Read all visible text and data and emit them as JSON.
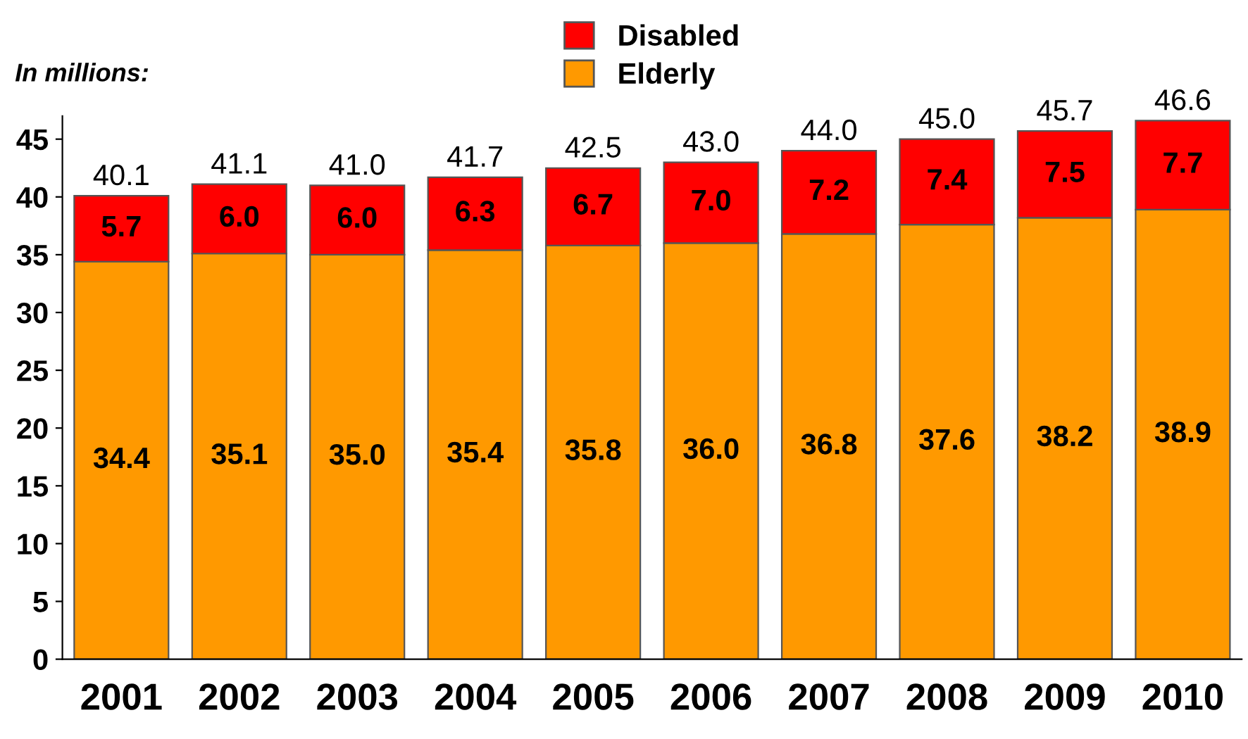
{
  "chart_data": {
    "type": "bar",
    "stacked": true,
    "categories": [
      "2001",
      "2002",
      "2003",
      "2004",
      "2005",
      "2006",
      "2007",
      "2008",
      "2009",
      "2010"
    ],
    "series": [
      {
        "name": "Elderly",
        "color": "#ff9900",
        "values": [
          34.4,
          35.1,
          35.0,
          35.4,
          35.8,
          36.0,
          36.8,
          37.6,
          38.2,
          38.9
        ],
        "value_labels": [
          "34.4",
          "35.1",
          "35.0",
          "35.4",
          "35.8",
          "36.0",
          "36.8",
          "37.6",
          "38.2",
          "38.9"
        ]
      },
      {
        "name": "Disabled",
        "color": "#ff0000",
        "values": [
          5.7,
          6.0,
          6.0,
          6.3,
          6.7,
          7.0,
          7.2,
          7.4,
          7.5,
          7.7
        ],
        "value_labels": [
          "5.7",
          "6.0",
          "6.0",
          "6.3",
          "6.7",
          "7.0",
          "7.2",
          "7.4",
          "7.5",
          "7.7"
        ]
      }
    ],
    "totals": [
      "40.1",
      "41.1",
      "41.0",
      "41.7",
      "42.5",
      "43.0",
      "44.0",
      "45.0",
      "45.7",
      "46.6"
    ],
    "ylim": [
      0,
      47
    ],
    "yticks": [
      0,
      5,
      10,
      15,
      20,
      25,
      30,
      35,
      40,
      45
    ],
    "annotations": [
      "In millions:"
    ],
    "legend": "top",
    "grid": false
  }
}
